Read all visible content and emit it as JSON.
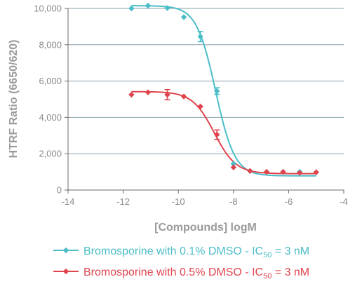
{
  "chart_data": {
    "type": "scatter",
    "xlabel": "[Compounds] logM",
    "ylabel": "HTRF Ratio (6650/620)",
    "xlim": [
      -14,
      -4
    ],
    "ylim": [
      0,
      10000
    ],
    "x_ticks": [
      "-14",
      "-12",
      "-10",
      "-8",
      "-6",
      "-4"
    ],
    "y_ticks": [
      "0",
      "2,000",
      "4,000",
      "6,000",
      "8,000",
      "10,000"
    ],
    "grid": "horizontal",
    "legend_position": "bottom",
    "series": [
      {
        "name": "Bromosporine with 0.1% DMSO - IC50 = 3 nM",
        "legend_prefix": "Bromosporine with 0.1% DMSO - IC",
        "legend_sub": "50",
        "legend_suffix": " = 3 nM",
        "color": "#4bbdc7",
        "points": [
          {
            "x": -11.7,
            "y": 10000
          },
          {
            "x": -11.1,
            "y": 10150
          },
          {
            "x": -10.4,
            "y": 10020
          },
          {
            "x": -9.8,
            "y": 9520
          },
          {
            "x": -9.2,
            "y": 8450,
            "err": 280
          },
          {
            "x": -8.6,
            "y": 5450,
            "err": 180
          },
          {
            "x": -8.0,
            "y": 1450
          },
          {
            "x": -7.4,
            "y": 1050
          },
          {
            "x": -6.8,
            "y": 1000
          },
          {
            "x": -6.2,
            "y": 1000
          },
          {
            "x": -5.6,
            "y": 1000
          },
          {
            "x": -5.0,
            "y": 980
          }
        ],
        "fit": {
          "top": 10150,
          "bottom": 780,
          "logIC50": -8.65,
          "hill": 1.25
        }
      },
      {
        "name": "Bromosporine with 0.5% DMSO - IC50 = 3 nM",
        "legend_prefix": "Bromosporine with 0.5% DMSO - IC",
        "legend_sub": "50",
        "legend_suffix": " = 3 nM",
        "color": "#e0454e",
        "points": [
          {
            "x": -11.7,
            "y": 5250
          },
          {
            "x": -11.1,
            "y": 5380
          },
          {
            "x": -10.4,
            "y": 5250,
            "err": 280
          },
          {
            "x": -9.8,
            "y": 5150
          },
          {
            "x": -9.2,
            "y": 4600
          },
          {
            "x": -8.6,
            "y": 3050,
            "err": 260
          },
          {
            "x": -8.0,
            "y": 1250
          },
          {
            "x": -7.4,
            "y": 1050
          },
          {
            "x": -6.8,
            "y": 1000
          },
          {
            "x": -6.2,
            "y": 1000
          },
          {
            "x": -5.6,
            "y": 950
          },
          {
            "x": -5.0,
            "y": 980
          }
        ],
        "fit": {
          "top": 5420,
          "bottom": 900,
          "logIC50": -8.7,
          "hill": 1.1
        }
      }
    ]
  }
}
